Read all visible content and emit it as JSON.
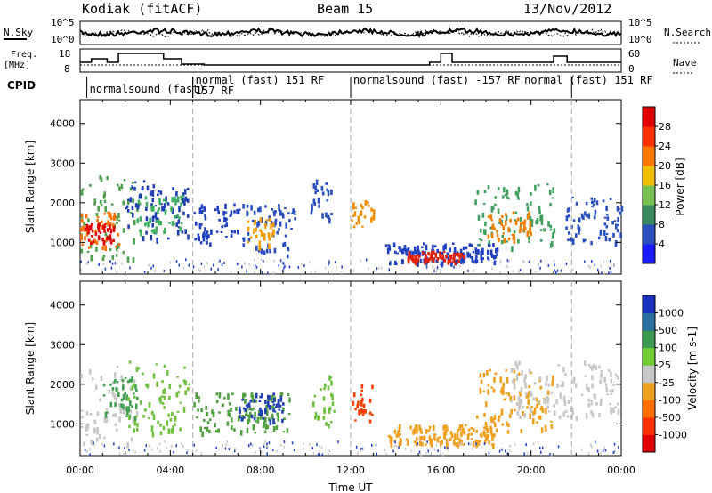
{
  "header": {
    "site": "Kodiak (fitACF)",
    "beam": "Beam 15",
    "date": "13/Nov/2012"
  },
  "aux_panel": {
    "left_labels": {
      "nsky": "N.Sky",
      "freq": "Freq.",
      "freq_unit": "[MHz]",
      "cpid": "CPID"
    },
    "right_labels": {
      "nsearch": "N.Search",
      "nave": "Nave"
    },
    "noise_ticks_left": [
      "10^5",
      "10^0"
    ],
    "noise_ticks_right": [
      "10^5",
      "10^0"
    ],
    "freq_ticks": [
      "18",
      "8"
    ],
    "nave_ticks": [
      "60",
      "0"
    ],
    "cpid_segments": [
      {
        "start": 0.3,
        "end": 5.0,
        "label": "normalsound (fast)"
      },
      {
        "start": 5.0,
        "end": 12.0,
        "label": "normal (fast) 151 RF",
        "label2": "157 RF"
      },
      {
        "start": 12.0,
        "end": 21.8,
        "label": "normalsound (fast) -157 RF",
        "label2": "normal (fast) 151 RF"
      }
    ]
  },
  "chart_data": [
    {
      "type": "heatmap",
      "name": "power",
      "ylabel": "Slant Range [km]",
      "xlabel": "",
      "xlim": [
        0,
        24
      ],
      "ylim": [
        200,
        4600
      ],
      "yticks": [
        "1000",
        "2000",
        "3000",
        "4000"
      ],
      "colorbar": {
        "label": "Power [dB]",
        "ticks": [
          "4",
          "8",
          "12",
          "16",
          "20",
          "24",
          "28"
        ],
        "colors": [
          "#1a1aff",
          "#2a50c0",
          "#3a8a60",
          "#78c050",
          "#f0c000",
          "#ff7800",
          "#ff3000",
          "#e00000"
        ]
      },
      "regions": [
        {
          "t0": 0.0,
          "t1": 2.5,
          "r0": 600,
          "r1": 2700,
          "c": "#50a050"
        },
        {
          "t0": 0.0,
          "t1": 1.8,
          "r0": 900,
          "r1": 1800,
          "c": "#ff7000"
        },
        {
          "t0": 0.2,
          "t1": 1.5,
          "r0": 1000,
          "r1": 1500,
          "c": "#e00000"
        },
        {
          "t0": 2.0,
          "t1": 4.8,
          "r0": 1100,
          "r1": 2600,
          "c": "#2040b0"
        },
        {
          "t0": 2.5,
          "t1": 4.5,
          "r0": 1300,
          "r1": 2200,
          "c": "#40b060"
        },
        {
          "t0": 5.0,
          "t1": 7.0,
          "r0": 1000,
          "r1": 2000,
          "c": "#2040c0"
        },
        {
          "t0": 7.0,
          "t1": 9.5,
          "r0": 700,
          "r1": 2000,
          "c": "#2a50c0"
        },
        {
          "t0": 7.4,
          "t1": 8.6,
          "r0": 900,
          "r1": 1700,
          "c": "#f0a000"
        },
        {
          "t0": 10.2,
          "t1": 11.2,
          "r0": 1600,
          "r1": 2600,
          "c": "#2a50c0"
        },
        {
          "t0": 12.0,
          "t1": 13.0,
          "r0": 1300,
          "r1": 2100,
          "c": "#f09000"
        },
        {
          "t0": 13.5,
          "t1": 18.5,
          "r0": 500,
          "r1": 1000,
          "c": "#2040c0"
        },
        {
          "t0": 14.5,
          "t1": 17.0,
          "r0": 550,
          "r1": 800,
          "c": "#e02000"
        },
        {
          "t0": 17.5,
          "t1": 21.0,
          "r0": 900,
          "r1": 2500,
          "c": "#40a060"
        },
        {
          "t0": 18.0,
          "t1": 20.0,
          "r0": 1100,
          "r1": 1800,
          "c": "#f08000"
        },
        {
          "t0": 21.5,
          "t1": 24.0,
          "r0": 1000,
          "r1": 2200,
          "c": "#2a50c0"
        }
      ]
    },
    {
      "type": "heatmap",
      "name": "velocity",
      "ylabel": "Slant Range [km]",
      "xlabel": "Time UT",
      "xlim": [
        0,
        24
      ],
      "ylim": [
        200,
        4600
      ],
      "xticks": [
        "00:00",
        "04:00",
        "08:00",
        "12:00",
        "16:00",
        "20:00",
        "00:00"
      ],
      "yticks": [
        "1000",
        "2000",
        "3000",
        "4000"
      ],
      "colorbar": {
        "label": "Velocity [m s-1]",
        "ticks": [
          "1000",
          "500",
          "100",
          "25",
          "-25",
          "-100",
          "-500",
          "-1000"
        ],
        "colors": [
          "#1a30c0",
          "#2a70a0",
          "#3a9a50",
          "#70cc30",
          "#c8c8c8",
          "#f0a020",
          "#ff7000",
          "#ff3000",
          "#e00000"
        ]
      },
      "regions": [
        {
          "t0": 0.0,
          "t1": 2.5,
          "r0": 500,
          "r1": 2600,
          "c": "#c8c8c8"
        },
        {
          "t0": 1.0,
          "t1": 2.5,
          "r0": 1200,
          "r1": 2200,
          "c": "#40a050"
        },
        {
          "t0": 2.0,
          "t1": 4.8,
          "r0": 800,
          "r1": 2600,
          "c": "#70c040"
        },
        {
          "t0": 5.0,
          "t1": 9.3,
          "r0": 800,
          "r1": 1800,
          "c": "#50a040"
        },
        {
          "t0": 7.0,
          "t1": 9.0,
          "r0": 1100,
          "r1": 1800,
          "c": "#2040b0"
        },
        {
          "t0": 10.3,
          "t1": 11.3,
          "r0": 1000,
          "r1": 2300,
          "c": "#70c040"
        },
        {
          "t0": 12.0,
          "t1": 13.0,
          "r0": 1100,
          "r1": 2000,
          "c": "#ff4000"
        },
        {
          "t0": 13.5,
          "t1": 18.5,
          "r0": 500,
          "r1": 1000,
          "c": "#f0a020"
        },
        {
          "t0": 17.5,
          "t1": 21.0,
          "r0": 800,
          "r1": 2400,
          "c": "#f0a020"
        },
        {
          "t0": 19.0,
          "t1": 24.0,
          "r0": 1200,
          "r1": 2600,
          "c": "#c8c8c8"
        }
      ]
    }
  ]
}
